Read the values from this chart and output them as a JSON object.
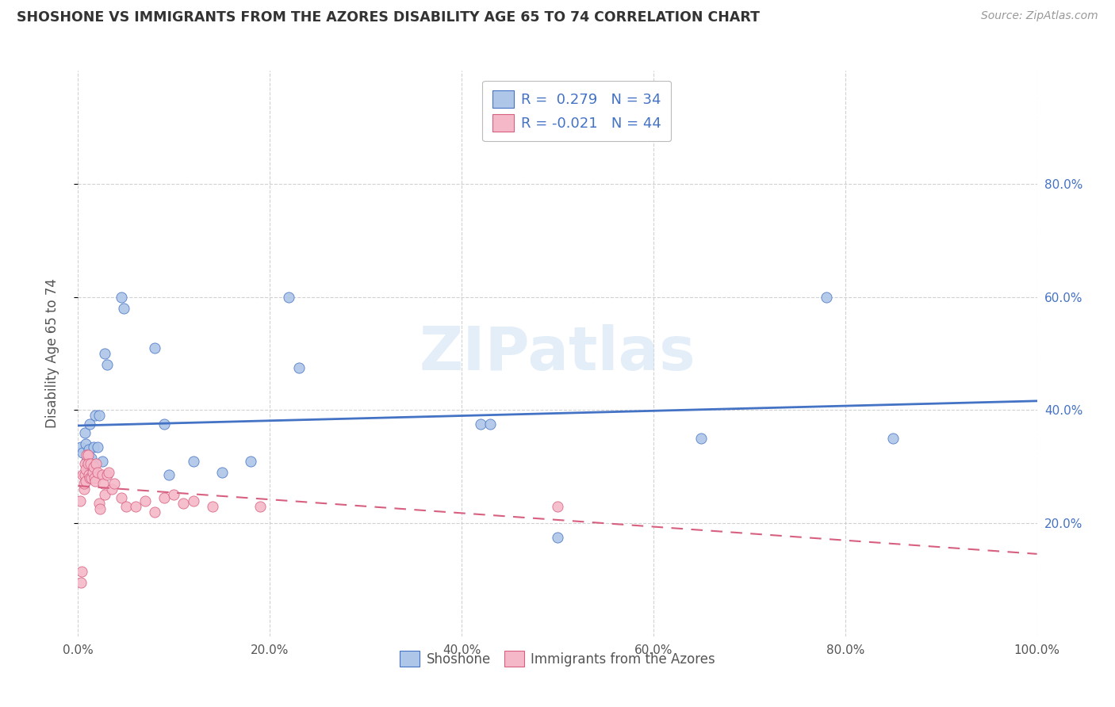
{
  "title": "SHOSHONE VS IMMIGRANTS FROM THE AZORES DISABILITY AGE 65 TO 74 CORRELATION CHART",
  "source": "Source: ZipAtlas.com",
  "ylabel": "Disability Age 65 to 74",
  "watermark": "ZIPatlas",
  "shoshone_R": 0.279,
  "shoshone_N": 34,
  "azores_R": -0.021,
  "azores_N": 44,
  "shoshone_color": "#aec6e8",
  "azores_color": "#f5b8c8",
  "shoshone_line_color": "#4472c4",
  "azores_line_color": "#d75f80",
  "background_color": "#ffffff",
  "grid_color": "#cccccc",
  "shoshone_x": [
    0.003,
    0.005,
    0.007,
    0.008,
    0.009,
    0.01,
    0.011,
    0.012,
    0.013,
    0.014,
    0.015,
    0.016,
    0.018,
    0.02,
    0.022,
    0.025,
    0.028,
    0.03,
    0.045,
    0.048,
    0.08,
    0.09,
    0.095,
    0.12,
    0.15,
    0.18,
    0.22,
    0.23,
    0.42,
    0.43,
    0.5,
    0.65,
    0.78,
    0.85
  ],
  "shoshone_y": [
    0.335,
    0.325,
    0.36,
    0.34,
    0.31,
    0.295,
    0.33,
    0.375,
    0.31,
    0.315,
    0.295,
    0.335,
    0.39,
    0.335,
    0.39,
    0.31,
    0.5,
    0.48,
    0.6,
    0.58,
    0.51,
    0.375,
    0.285,
    0.31,
    0.29,
    0.31,
    0.6,
    0.475,
    0.375,
    0.375,
    0.175,
    0.35,
    0.6,
    0.35
  ],
  "azores_x": [
    0.002,
    0.003,
    0.004,
    0.005,
    0.006,
    0.006,
    0.007,
    0.007,
    0.008,
    0.008,
    0.009,
    0.01,
    0.01,
    0.011,
    0.012,
    0.013,
    0.014,
    0.015,
    0.016,
    0.017,
    0.018,
    0.019,
    0.02,
    0.022,
    0.023,
    0.025,
    0.026,
    0.028,
    0.03,
    0.032,
    0.035,
    0.038,
    0.045,
    0.05,
    0.06,
    0.07,
    0.08,
    0.09,
    0.1,
    0.11,
    0.12,
    0.14,
    0.19,
    0.5
  ],
  "azores_y": [
    0.24,
    0.095,
    0.115,
    0.285,
    0.26,
    0.27,
    0.305,
    0.285,
    0.295,
    0.275,
    0.32,
    0.32,
    0.305,
    0.285,
    0.28,
    0.305,
    0.28,
    0.29,
    0.3,
    0.28,
    0.275,
    0.305,
    0.29,
    0.235,
    0.225,
    0.285,
    0.27,
    0.25,
    0.285,
    0.29,
    0.26,
    0.27,
    0.245,
    0.23,
    0.23,
    0.24,
    0.22,
    0.245,
    0.25,
    0.235,
    0.24,
    0.23,
    0.23,
    0.23
  ],
  "xlim": [
    0.0,
    1.0
  ],
  "ylim": [
    0.0,
    1.0
  ],
  "xticks": [
    0.0,
    0.2,
    0.4,
    0.6,
    0.8,
    1.0
  ],
  "yticks_right": [
    0.2,
    0.4,
    0.6,
    0.8
  ],
  "xticklabels": [
    "0.0%",
    "20.0%",
    "40.0%",
    "60.0%",
    "80.0%",
    "100.0%"
  ],
  "yticklabels_right": [
    "20.0%",
    "40.0%",
    "60.0%",
    "80.0%"
  ]
}
